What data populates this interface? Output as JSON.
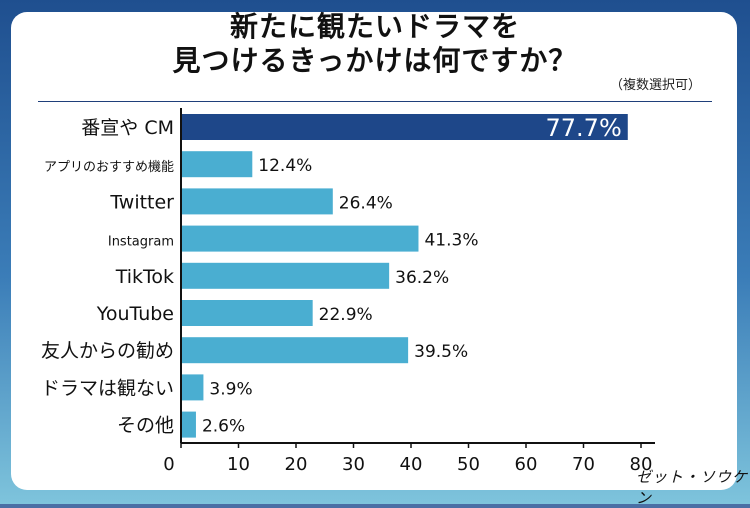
{
  "header": {
    "title_line1": "新たに観たいドラマを",
    "title_line2": "見つけるきっかけは何ですか？",
    "note": "（複数選択可）"
  },
  "logo_text": "ゼット・ソウケン",
  "colors": {
    "highlight_bar": "#1e4789",
    "bar": "#4aaed1",
    "axis": "#111111"
  },
  "chart_data": {
    "type": "bar",
    "orientation": "horizontal",
    "categories": [
      "番宣や CM",
      "アプリのおすすめ機能",
      "Twitter",
      "Instagram",
      "TikTok",
      "YouTube",
      "友人からの勧め",
      "ドラマは観ない",
      "その他"
    ],
    "values": [
      77.7,
      12.4,
      26.4,
      41.3,
      36.2,
      22.9,
      39.5,
      3.9,
      2.6
    ],
    "value_labels": [
      "77.7%",
      "12.4%",
      "26.4%",
      "41.3%",
      "36.2%",
      "22.9%",
      "39.5%",
      "3.9%",
      "2.6%"
    ],
    "xlim": [
      0,
      80
    ],
    "x_ticks": [
      "0",
      "10",
      "20",
      "30",
      "40",
      "50",
      "60",
      "70",
      "80"
    ],
    "highlight_index": 0,
    "grid": false
  }
}
